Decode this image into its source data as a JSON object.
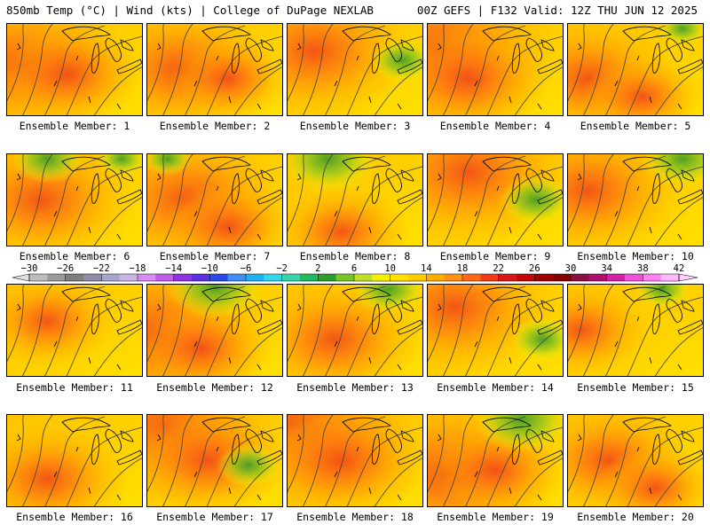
{
  "header": {
    "left": "850mb Temp (°C) | Wind (kts) | College of DuPage NEXLAB",
    "right": "00Z GEFS | F132 Valid: 12Z THU JUN 12 2025"
  },
  "members": [
    {
      "label": "Ensemble Member: 1",
      "warm": [
        [
          0.1,
          0.45,
          1.6
        ],
        [
          0.45,
          0.55,
          1.1
        ]
      ],
      "green": []
    },
    {
      "label": "Ensemble Member: 2",
      "warm": [
        [
          0.25,
          0.5,
          1.4
        ],
        [
          0.6,
          0.6,
          0.9
        ]
      ],
      "green": []
    },
    {
      "label": "Ensemble Member: 3",
      "warm": [
        [
          0.2,
          0.3,
          1.5
        ]
      ],
      "green": [
        [
          0.85,
          0.4,
          0.8
        ]
      ]
    },
    {
      "label": "Ensemble Member: 4",
      "warm": [
        [
          0.05,
          0.3,
          1.9
        ],
        [
          0.3,
          0.6,
          1.2
        ]
      ],
      "green": []
    },
    {
      "label": "Ensemble Member: 5",
      "warm": [
        [
          0.15,
          0.6,
          1.3
        ],
        [
          0.55,
          0.8,
          0.9
        ]
      ],
      "green": [
        [
          0.85,
          0.05,
          0.6
        ]
      ]
    },
    {
      "label": "Ensemble Member: 6",
      "warm": [
        [
          0.25,
          0.5,
          1.4
        ]
      ],
      "green": [
        [
          0.3,
          0.05,
          0.9
        ],
        [
          0.85,
          0.05,
          0.6
        ]
      ]
    },
    {
      "label": "Ensemble Member: 7",
      "warm": [
        [
          0.3,
          0.5,
          1.5
        ],
        [
          0.6,
          0.8,
          1.0
        ]
      ],
      "green": [
        [
          0.15,
          0.05,
          0.6
        ]
      ]
    },
    {
      "label": "Ensemble Member: 8",
      "warm": [
        [
          0.4,
          0.85,
          1.0
        ]
      ],
      "green": [
        [
          0.3,
          0.05,
          1.2
        ]
      ]
    },
    {
      "label": "Ensemble Member: 9",
      "warm": [
        [
          0.3,
          0.2,
          1.6
        ]
      ],
      "green": [
        [
          0.8,
          0.5,
          0.9
        ]
      ]
    },
    {
      "label": "Ensemble Member: 10",
      "warm": [
        [
          0.15,
          0.4,
          1.4
        ]
      ],
      "green": [
        [
          0.85,
          0.05,
          1.0
        ]
      ]
    },
    {
      "label": "Ensemble Member: 11",
      "warm": [
        [
          0.3,
          0.4,
          1.0
        ]
      ],
      "green": []
    },
    {
      "label": "Ensemble Member: 12",
      "warm": [
        [
          0.05,
          0.55,
          1.8
        ],
        [
          0.4,
          0.7,
          1.0
        ]
      ],
      "green": [
        [
          0.5,
          0.02,
          1.2
        ]
      ]
    },
    {
      "label": "Ensemble Member: 13",
      "warm": [
        [
          0.35,
          0.6,
          1.3
        ]
      ],
      "green": [
        [
          0.75,
          0.05,
          0.9
        ]
      ]
    },
    {
      "label": "Ensemble Member: 14",
      "warm": [
        [
          0.2,
          0.25,
          1.5
        ]
      ],
      "green": [
        [
          0.85,
          0.6,
          0.8
        ]
      ]
    },
    {
      "label": "Ensemble Member: 15",
      "warm": [
        [
          0.1,
          0.5,
          1.0
        ]
      ],
      "green": [
        [
          0.7,
          0.05,
          0.7
        ]
      ]
    },
    {
      "label": "Ensemble Member: 16",
      "warm": [
        [
          0.3,
          0.7,
          1.2
        ]
      ],
      "green": []
    },
    {
      "label": "Ensemble Member: 17",
      "warm": [
        [
          0.15,
          0.15,
          1.7
        ],
        [
          0.45,
          0.5,
          1.2
        ]
      ],
      "green": [
        [
          0.75,
          0.55,
          0.8
        ]
      ]
    },
    {
      "label": "Ensemble Member: 18",
      "warm": [
        [
          0.05,
          0.1,
          2.0
        ],
        [
          0.4,
          0.5,
          1.3
        ]
      ],
      "green": []
    },
    {
      "label": "Ensemble Member: 19",
      "warm": [
        [
          0.15,
          0.65,
          1.7
        ],
        [
          0.5,
          0.6,
          1.0
        ]
      ],
      "green": [
        [
          0.7,
          0.05,
          1.2
        ]
      ]
    },
    {
      "label": "Ensemble Member: 20",
      "warm": [
        [
          0.3,
          0.5,
          1.2
        ],
        [
          0.65,
          0.8,
          0.9
        ]
      ],
      "green": []
    }
  ],
  "colorbar": {
    "labels": [
      "−30",
      "−26",
      "−22",
      "−18",
      "−14",
      "−10",
      "−6",
      "−2",
      "2",
      "6",
      "10",
      "14",
      "18",
      "22",
      "26",
      "30",
      "34",
      "38",
      "42"
    ],
    "colors": [
      "#bdbdbd",
      "#9a9a9a",
      "#7e7e7e",
      "#8e8ea8",
      "#a5a5cf",
      "#c9b4e4",
      "#d68cf0",
      "#c25ce6",
      "#8d34e0",
      "#5a2fe0",
      "#2a49e8",
      "#3f8ff5",
      "#1fb0f0",
      "#2fd8e8",
      "#34d3aa",
      "#20b860",
      "#2e9e2e",
      "#7ac424",
      "#bfe020",
      "#f4f00a",
      "#ffe000",
      "#ffcc00",
      "#ffac00",
      "#ff8f10",
      "#ff6a10",
      "#f03a18",
      "#d81818",
      "#c00808",
      "#a00000",
      "#880000",
      "#8a1040",
      "#b01070",
      "#d520a8",
      "#ef50d8",
      "#ff80f0",
      "#ffb8fa"
    ]
  }
}
